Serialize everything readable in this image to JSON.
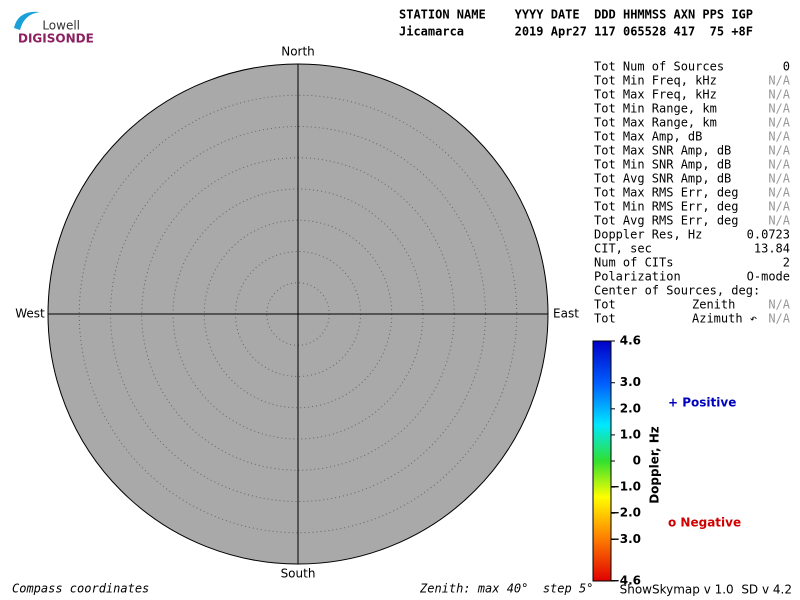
{
  "logo": {
    "top": "Lowell",
    "bottom": "DIGISONDE"
  },
  "header": {
    "columns": "STATION NAME    YYYY DATE  DDD HHMMSS AXN PPS IGP",
    "values": "Jicamarca       2019 Apr27 117 065528 417  75 +8F"
  },
  "compass": {
    "north": "North",
    "south": "South",
    "west": "West",
    "east": "East",
    "zenith_max": 40,
    "zenith_step": 5
  },
  "stats": [
    {
      "label": "Tot Num of Sources",
      "value": "0"
    },
    {
      "label": "Tot Min Freq, kHz",
      "value": "N/A"
    },
    {
      "label": "Tot Max Freq, kHz",
      "value": "N/A"
    },
    {
      "label": "Tot Min Range, km",
      "value": "N/A"
    },
    {
      "label": "Tot Max Range, km",
      "value": "N/A"
    },
    {
      "label": "Tot Max Amp, dB",
      "value": "N/A"
    },
    {
      "label": "Tot Max SNR Amp, dB",
      "value": "N/A"
    },
    {
      "label": "Tot Min SNR Amp, dB",
      "value": "N/A"
    },
    {
      "label": "Tot Avg SNR Amp, dB",
      "value": "N/A"
    },
    {
      "label": "Tot Max RMS Err, deg",
      "value": "N/A"
    },
    {
      "label": "Tot Min RMS Err, deg",
      "value": "N/A"
    },
    {
      "label": "Tot Avg RMS Err, deg",
      "value": "N/A"
    },
    {
      "label": "Doppler Res, Hz",
      "value": "0.0723"
    },
    {
      "label": "CIT, sec",
      "value": "13.84"
    },
    {
      "label": "Num of CITs",
      "value": "2"
    },
    {
      "label": "Polarization",
      "value": "O-mode"
    },
    {
      "label": "Center of Sources, deg:"
    },
    {
      "label": "Tot",
      "sub": "Zenith",
      "value": "N/A"
    },
    {
      "label": "Tot",
      "sub": "Azimuth ↶",
      "value": "N/A"
    }
  ],
  "colorbar": {
    "title": "Doppler, Hz",
    "lim": [
      -4.6,
      4.6
    ],
    "ticks": [
      4.6,
      {
        "value": 3,
        "label": "3.0"
      },
      {
        "value": 2,
        "label": "2.0"
      },
      {
        "value": 1,
        "label": "1.0"
      },
      0,
      {
        "value": -1,
        "label": "−1.0"
      },
      {
        "value": -2,
        "label": "−2.0"
      },
      {
        "value": -3,
        "label": "−3.0"
      },
      {
        "value": -4.6,
        "label": "−4.6"
      }
    ]
  },
  "legend": {
    "positive": "+ Positive",
    "negative": "o Negative"
  },
  "footer": {
    "left": "Compass coordinates",
    "middle": "Zenith: max 40°  step 5°",
    "right": "ShowSkymap v 1.0  SD v 4.2"
  }
}
